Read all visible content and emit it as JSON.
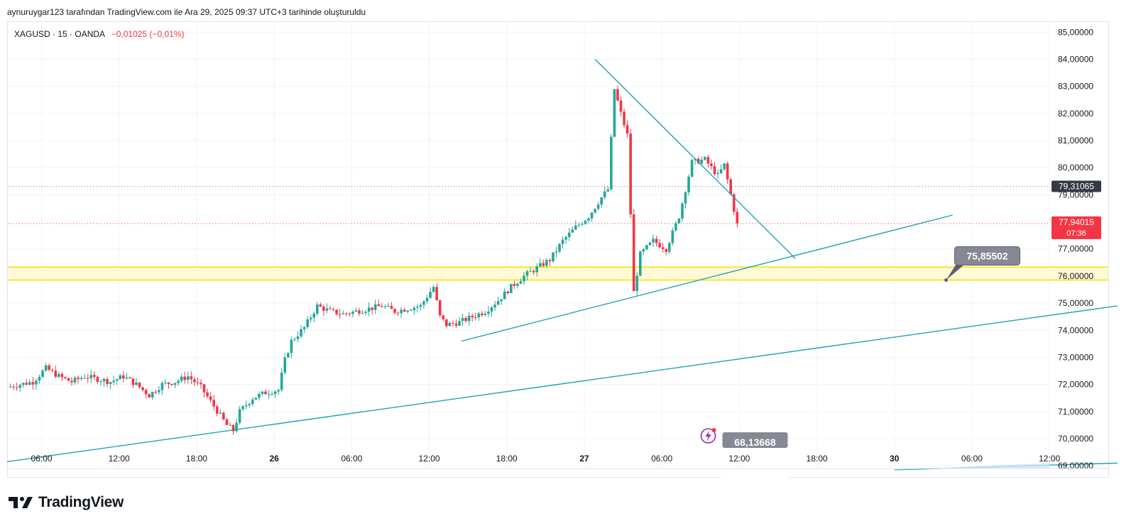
{
  "header": {
    "created_note": "aynuruygar123 tarafından TradingView.com ile Ara 29, 2025 09:37 UTC+3 tarihinde oluşturuldu"
  },
  "legend": {
    "symbol": "XAGUSD · 15 · OANDA",
    "change": "−0,01025 (−0,01%)"
  },
  "brand": {
    "name": "TradingView"
  },
  "colors": {
    "up": "#26a69a",
    "down": "#f23645",
    "trendline": "#1fa3b8",
    "zone": "#f5e83a",
    "zone_fill": "#fff9d6",
    "label_gray": "#868993"
  },
  "chart_data": {
    "type": "candlestick",
    "symbol": "XAGUSD",
    "interval": "15",
    "y_range": [
      68.9,
      85.4
    ],
    "x_range": [
      "25 Ara 03:20",
      "30 Ara 17:15"
    ],
    "y_ticks": [
      "85,00000",
      "84,00000",
      "83,00000",
      "82,00000",
      "81,00000",
      "80,00000",
      "79,00000",
      "77,00000",
      "76,00000",
      "75,00000",
      "74,00000",
      "73,00000",
      "72,00000",
      "71,00000",
      "70,00000",
      "69,00000"
    ],
    "x_ticks": [
      {
        "label": "06:00",
        "bold": false
      },
      {
        "label": "12:00",
        "bold": false
      },
      {
        "label": "18:00",
        "bold": false
      },
      {
        "label": "26",
        "bold": true
      },
      {
        "label": "06:00",
        "bold": false
      },
      {
        "label": "12:00",
        "bold": false
      },
      {
        "label": "18:00",
        "bold": false
      },
      {
        "label": "27",
        "bold": true
      },
      {
        "label": "06:00",
        "bold": false
      },
      {
        "label": "12:00",
        "bold": false
      },
      {
        "label": "18:00",
        "bold": false
      },
      {
        "label": "30",
        "bold": true
      },
      {
        "label": "06:00",
        "bold": false
      },
      {
        "label": "12:00",
        "bold": false
      }
    ],
    "price_path": [
      [
        0,
        71.9
      ],
      [
        2,
        72.1
      ],
      [
        3,
        72.6
      ],
      [
        4,
        72.3
      ],
      [
        5,
        72.1
      ],
      [
        6,
        72.3
      ],
      [
        7,
        72.2
      ],
      [
        8,
        72.1
      ],
      [
        9,
        72.3
      ],
      [
        10,
        72.0
      ],
      [
        11,
        71.6
      ],
      [
        12,
        72.0
      ],
      [
        13,
        72.1
      ],
      [
        14,
        72.3
      ],
      [
        15,
        71.9
      ],
      [
        16,
        71.2
      ],
      [
        17,
        70.5
      ],
      [
        17.5,
        70.3
      ],
      [
        18,
        71.0
      ],
      [
        19,
        71.5
      ],
      [
        20,
        71.7
      ],
      [
        21,
        71.8
      ],
      [
        21.5,
        72.9
      ],
      [
        22,
        73.6
      ],
      [
        23,
        74.1
      ],
      [
        24,
        74.9
      ],
      [
        25,
        74.7
      ],
      [
        26,
        74.6
      ],
      [
        27,
        74.7
      ],
      [
        28,
        74.8
      ],
      [
        29,
        74.9
      ],
      [
        30,
        74.7
      ],
      [
        31,
        74.8
      ],
      [
        32,
        74.9
      ],
      [
        33,
        75.6
      ],
      [
        33.5,
        74.5
      ],
      [
        34,
        74.2
      ],
      [
        35,
        74.3
      ],
      [
        36,
        74.5
      ],
      [
        37,
        74.7
      ],
      [
        38,
        75.1
      ],
      [
        39,
        75.6
      ],
      [
        40,
        76.0
      ],
      [
        41,
        76.3
      ],
      [
        42,
        76.6
      ],
      [
        43,
        77.3
      ],
      [
        44,
        77.8
      ],
      [
        45,
        78.2
      ],
      [
        46,
        78.9
      ],
      [
        46.5,
        79.2
      ],
      [
        47,
        82.9
      ],
      [
        47.5,
        82.0
      ],
      [
        48,
        81.2
      ],
      [
        48.5,
        75.4
      ],
      [
        49,
        76.8
      ],
      [
        50,
        77.3
      ],
      [
        51,
        77.0
      ],
      [
        52,
        78.2
      ],
      [
        53,
        80.2
      ],
      [
        54,
        80.3
      ],
      [
        55,
        79.7
      ],
      [
        55.5,
        80.1
      ],
      [
        56,
        79.0
      ],
      [
        56.5,
        77.9
      ]
    ],
    "trendlines": [
      {
        "from": [
          "27 Ara 00:50",
          84.0
        ],
        "to": [
          "27 Ara 16:20",
          76.65
        ]
      },
      {
        "from": [
          "26 Ara 14:30",
          73.6
        ],
        "to": [
          "30 Ara 04:30",
          78.25
        ]
      },
      {
        "from": [
          "25 Ara 03:20",
          69.15
        ],
        "to": [
          "30 Ara 17:15",
          74.9
        ]
      },
      {
        "from": [
          "30 Ara 00:00",
          68.85
        ],
        "to": [
          "30 Ara 17:15",
          69.1
        ]
      }
    ],
    "zone": {
      "low": 75.85502,
      "high": 76.33
    },
    "horizontal_lines": [
      {
        "price": 79.31065,
        "style": "dotted",
        "color": "#787b86"
      },
      {
        "price": 77.94015,
        "style": "dotted",
        "color": "#f23645"
      }
    ],
    "price_labels": [
      {
        "price": 79.31065,
        "text": "79,31065",
        "bg": "#363a45"
      },
      {
        "price": 77.94015,
        "text": "77,94015",
        "sub": "07:36",
        "bg": "#f23645"
      }
    ],
    "callouts": [
      {
        "text": "75,85502",
        "time": "30 Ara 04:00",
        "price": 75.85502
      },
      {
        "text": "68,13668",
        "time": "27 Ara 10:15",
        "price": 68.6
      }
    ]
  }
}
